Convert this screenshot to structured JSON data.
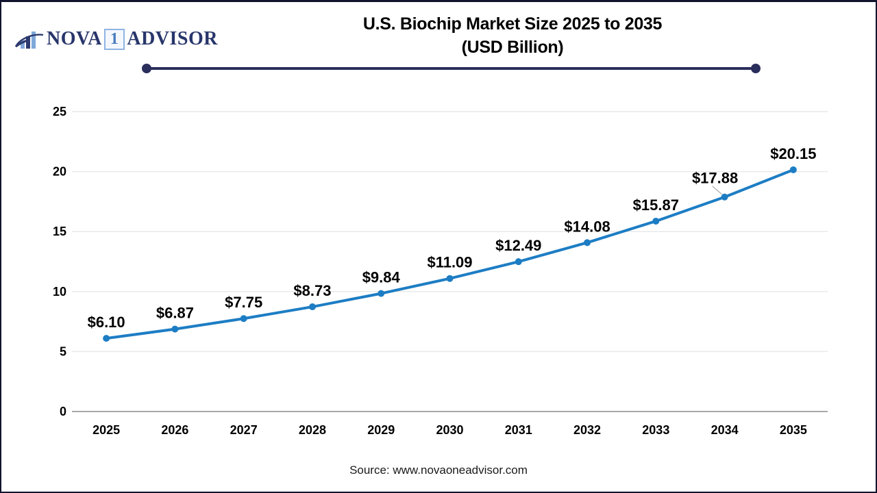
{
  "page": {
    "background": "#ffffff",
    "border_color": "#12142e"
  },
  "header": {
    "logo": {
      "icon": "bar-chart-swoosh-icon",
      "brand_prefix": "NOVA",
      "brand_number": "1",
      "brand_suffix": "ADVISOR",
      "navy": "#28366b",
      "light_blue": "#7fa8d9"
    },
    "title_line1": "U.S. Biochip Market Size 2025 to 2035",
    "title_line2": "(USD Billion)",
    "divider_color": "#2a2e5c"
  },
  "chart_data": {
    "type": "line",
    "title": "U.S. Biochip Market Size 2025 to 2035 (USD Billion)",
    "categories": [
      "2025",
      "2026",
      "2027",
      "2028",
      "2029",
      "2030",
      "2031",
      "2032",
      "2033",
      "2034",
      "2035"
    ],
    "series": [
      {
        "name": "U.S. Biochip Market Size (USD Billion)",
        "values": [
          6.1,
          6.87,
          7.75,
          8.73,
          9.84,
          11.09,
          12.49,
          14.08,
          15.87,
          17.88,
          20.15
        ],
        "labels": [
          "$6.10",
          "$6.87",
          "$7.75",
          "$8.73",
          "$9.84",
          "$11.09",
          "$12.49",
          "$14.08",
          "$15.87",
          "$17.88",
          "$20.15"
        ]
      }
    ],
    "xlabel": "",
    "ylabel": "",
    "ylim": [
      0,
      25
    ],
    "yticks": [
      0,
      5,
      10,
      15,
      20,
      25
    ],
    "grid": "horizontal",
    "legend": "none",
    "line_color": "#1d7dc4",
    "marker": "circle",
    "gridline_color": "#e9e9e9",
    "axis_line_color": "#a8a8a8",
    "label_offsets": {
      "2034": {
        "dx": -14,
        "dy": -4,
        "leader": true
      }
    }
  },
  "footer": {
    "source": "Source: www.novaoneadvisor.com"
  }
}
